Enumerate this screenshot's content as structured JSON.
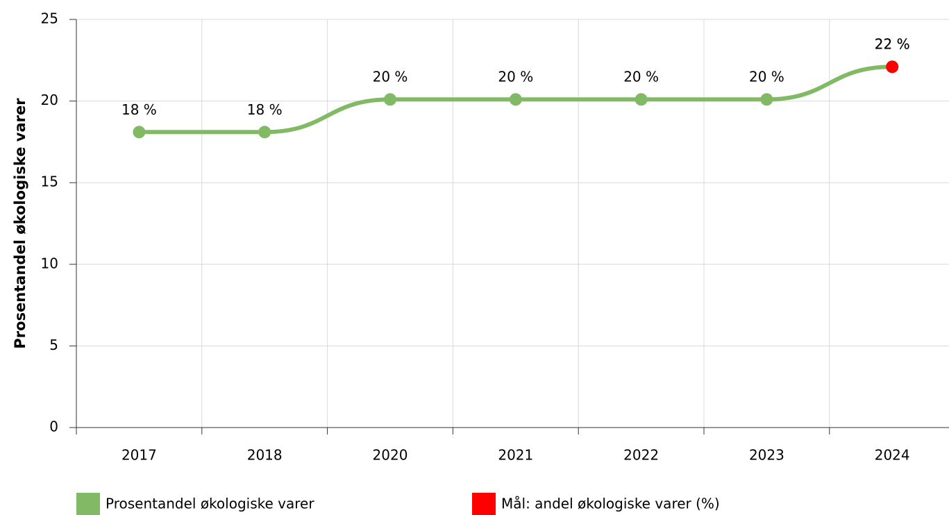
{
  "chart_data": {
    "type": "line",
    "y_label": "Prosentandel økologiske varer",
    "categories": [
      "2017",
      "2018",
      "2020",
      "2021",
      "2022",
      "2023",
      "2024"
    ],
    "series": [
      {
        "name": "Prosentandel økologiske varer",
        "color": "#82b964",
        "values": [
          18.1,
          18.1,
          20.1,
          20.1,
          20.1,
          20.1,
          22.1
        ],
        "value_labels": [
          "18 %",
          "18 %",
          "20 %",
          "20 %",
          "20 %",
          "20 %",
          "22 %"
        ]
      },
      {
        "name": "Mål: andel økologiske varer (%)",
        "color": "#ff0000",
        "values": [
          null,
          null,
          null,
          null,
          null,
          null,
          22.1
        ],
        "value_labels": [
          null,
          null,
          null,
          null,
          null,
          null,
          "22 %"
        ]
      }
    ],
    "ylim": [
      0,
      25
    ],
    "yticks": [
      0,
      5,
      10,
      15,
      20,
      25
    ],
    "grid": true
  }
}
